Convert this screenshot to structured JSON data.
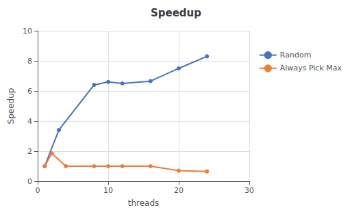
{
  "chart_data": {
    "type": "line",
    "title": "Speedup",
    "xlabel": "threads",
    "ylabel": "Speedup",
    "xlim": [
      0,
      30
    ],
    "ylim": [
      0,
      10
    ],
    "xticks": [
      0,
      10,
      20,
      30
    ],
    "yticks": [
      0,
      2,
      4,
      6,
      8,
      10
    ],
    "series": [
      {
        "name": "Random",
        "color": "#4472c4",
        "x": [
          1,
          3,
          8,
          10,
          12,
          16,
          20,
          24
        ],
        "values": [
          1.0,
          3.4,
          6.4,
          6.6,
          6.5,
          6.65,
          7.5,
          8.3
        ]
      },
      {
        "name": "Always Pick Max",
        "color": "#ed7d31",
        "x": [
          1,
          2,
          4,
          8,
          10,
          12,
          16,
          20,
          24
        ],
        "values": [
          1.0,
          1.85,
          1.0,
          1.0,
          1.0,
          1.0,
          1.0,
          0.7,
          0.65
        ]
      }
    ],
    "marker": "circle",
    "grid": true,
    "legend": "right"
  }
}
